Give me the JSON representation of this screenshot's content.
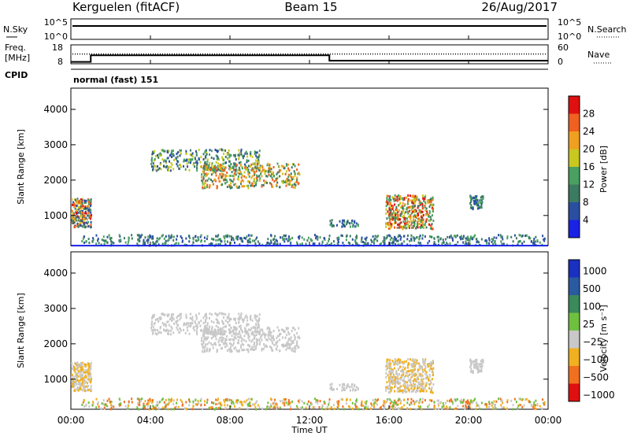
{
  "header": {
    "station": "Kerguelen (fitACF)",
    "beam": "Beam 15",
    "date": "26/Aug/2017"
  },
  "status_panels": {
    "nsky_label": "N.Sky",
    "nsearch_label": "N.Search",
    "nsky_ticks": [
      "10^5",
      "10^0"
    ],
    "nsearch_ticks": [
      "10^5",
      "10^0"
    ],
    "freq_label_lines": [
      "Freq.",
      "[MHz]"
    ],
    "freq_ticks": [
      "18",
      "8"
    ],
    "nave_label": "Nave",
    "nave_ticks": [
      "60",
      "0"
    ],
    "cpid_label": "CPID",
    "cpid_text": "normal (fast) 151"
  },
  "x_axis": {
    "label": "Time UT",
    "ticks": [
      "00:00",
      "04:00",
      "08:00",
      "12:00",
      "16:00",
      "20:00",
      "00:00"
    ],
    "range_hours": [
      0,
      24
    ]
  },
  "chart_data": [
    {
      "type": "line",
      "name": "status-freq-nave",
      "series": [
        {
          "name": "Freq.",
          "x": [
            0,
            1,
            1,
            13,
            13,
            24
          ],
          "y": [
            9.0,
            9.0,
            12.5,
            12.5,
            9.6,
            9.6
          ]
        },
        {
          "name": "Nave",
          "x": [
            0,
            24
          ],
          "y": [
            31,
            31
          ]
        }
      ]
    },
    {
      "type": "heatmap",
      "name": "power",
      "ylabel": "Slant Range [km]",
      "ylim": [
        150,
        4600
      ],
      "yticks": [
        1000,
        2000,
        3000,
        4000
      ],
      "colorbar": {
        "label": "Power [dB]",
        "ticks": [
          "4",
          "8",
          "12",
          "16",
          "20",
          "24",
          "28"
        ],
        "colors": [
          "#1a22e6",
          "#2a4fa0",
          "#3c7a62",
          "#4aa060",
          "#c8c820",
          "#f0a020",
          "#f06020",
          "#e01010"
        ]
      }
    },
    {
      "type": "heatmap",
      "name": "velocity",
      "ylabel": "Slant Range [km]",
      "ylim": [
        150,
        4600
      ],
      "yticks": [
        1000,
        2000,
        3000,
        4000
      ],
      "colorbar": {
        "label": "Velocity [m s⁻¹]",
        "ticks": [
          "1000",
          "500",
          "100",
          "25",
          "−25",
          "−100",
          "−500",
          "−1000"
        ],
        "colors": [
          "#1a30c0",
          "#2a5aa0",
          "#3a8a5a",
          "#70c040",
          "#c8c8c8",
          "#f0b020",
          "#f07020",
          "#e01010"
        ]
      }
    }
  ]
}
